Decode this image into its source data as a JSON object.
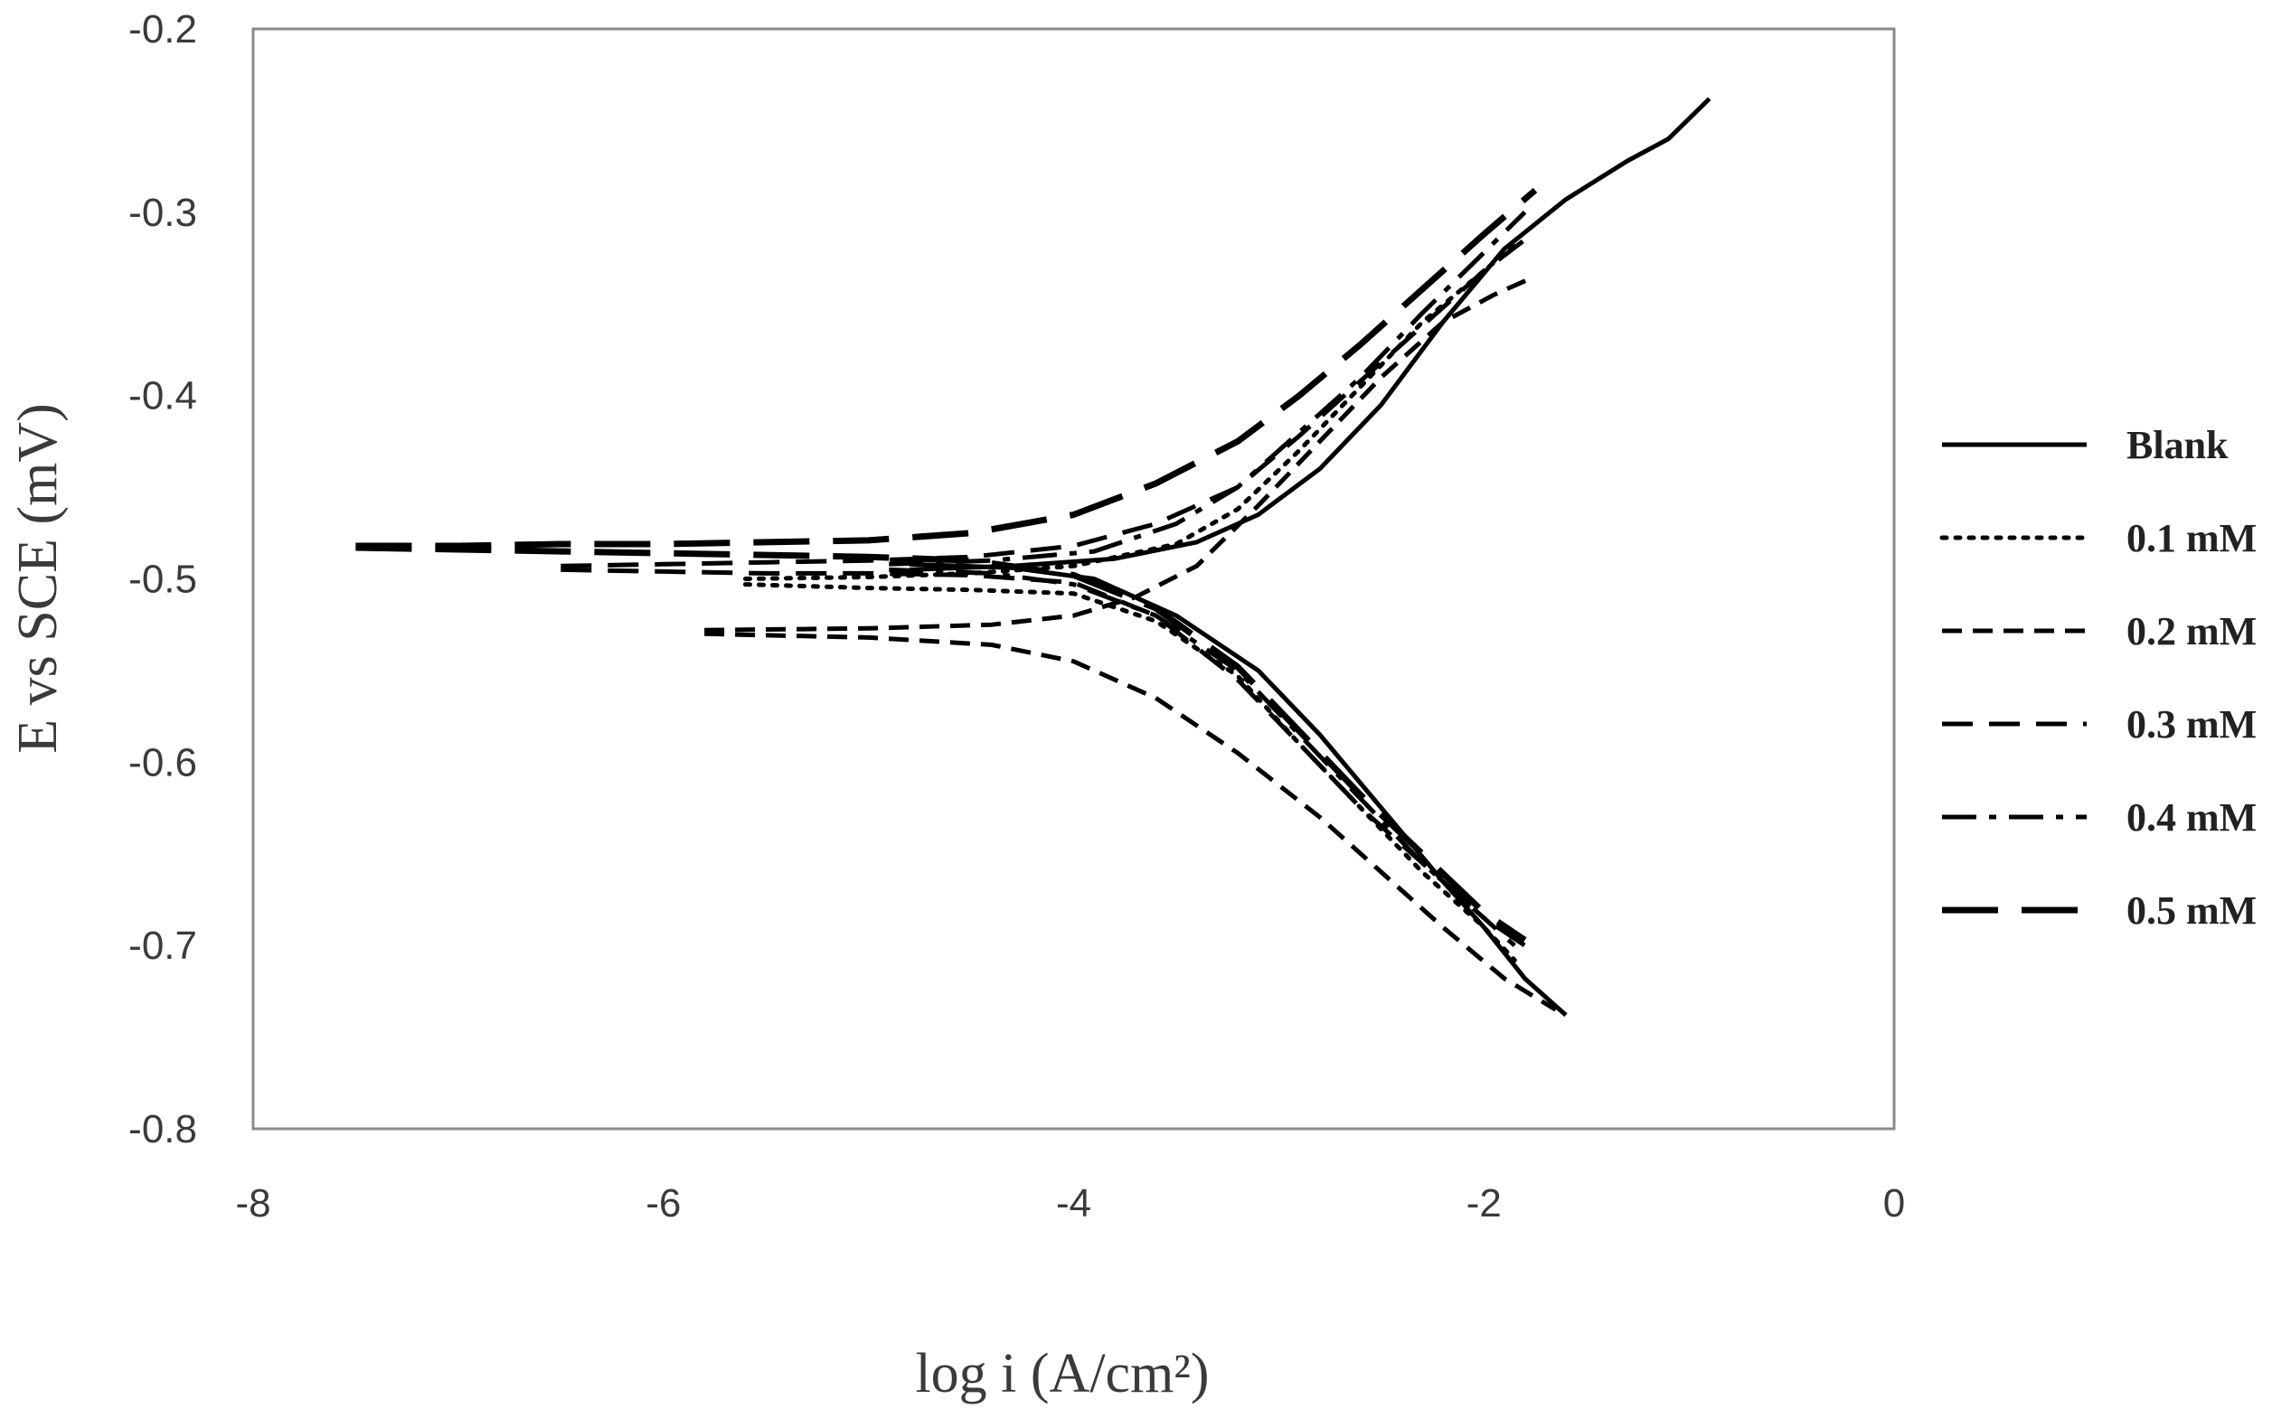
{
  "chart_data": {
    "type": "line",
    "title": "",
    "xlabel": "log i (A/cm²)",
    "ylabel": "E vs SCE (mV)",
    "xlim": [
      -8,
      0
    ],
    "ylim": [
      -0.8,
      -0.2
    ],
    "xticks": [
      -8,
      -6,
      -4,
      -2,
      0
    ],
    "yticks": [
      -0.2,
      -0.3,
      -0.4,
      -0.5,
      -0.6,
      -0.7,
      -0.8
    ],
    "xtick_labels": [
      "-8",
      "-6",
      "-4",
      "-2",
      "0"
    ],
    "ytick_labels": [
      "-0.2",
      "-0.3",
      "-0.4",
      "-0.5",
      "-0.6",
      "-0.7",
      "-0.8"
    ],
    "grid": false,
    "legend_position": "right",
    "series": [
      {
        "name": "Blank",
        "dash": "solid",
        "color": "#000000",
        "anodic": [
          [
            -4.8,
            -0.495
          ],
          [
            -4.3,
            -0.493
          ],
          [
            -3.8,
            -0.489
          ],
          [
            -3.4,
            -0.48
          ],
          [
            -3.1,
            -0.465
          ],
          [
            -2.8,
            -0.44
          ],
          [
            -2.5,
            -0.405
          ],
          [
            -2.2,
            -0.36
          ],
          [
            -1.9,
            -0.32
          ],
          [
            -1.6,
            -0.293
          ],
          [
            -1.3,
            -0.272
          ],
          [
            -1.1,
            -0.26
          ],
          [
            -0.9,
            -0.238
          ]
        ],
        "cathodic": [
          [
            -4.8,
            -0.492
          ],
          [
            -4.3,
            -0.494
          ],
          [
            -3.9,
            -0.5
          ],
          [
            -3.5,
            -0.52
          ],
          [
            -3.1,
            -0.55
          ],
          [
            -2.8,
            -0.585
          ],
          [
            -2.5,
            -0.625
          ],
          [
            -2.2,
            -0.665
          ],
          [
            -2.0,
            -0.69
          ],
          [
            -1.8,
            -0.718
          ],
          [
            -1.6,
            -0.738
          ]
        ]
      },
      {
        "name": "0.1 mM",
        "dash": "dotted",
        "color": "#000000",
        "anodic": [
          [
            -5.6,
            -0.5
          ],
          [
            -5.0,
            -0.499
          ],
          [
            -4.5,
            -0.497
          ],
          [
            -4.0,
            -0.493
          ],
          [
            -3.5,
            -0.481
          ],
          [
            -3.2,
            -0.462
          ],
          [
            -2.9,
            -0.43
          ],
          [
            -2.6,
            -0.395
          ],
          [
            -2.3,
            -0.36
          ],
          [
            -2.0,
            -0.332
          ],
          [
            -1.85,
            -0.318
          ]
        ],
        "cathodic": [
          [
            -5.6,
            -0.503
          ],
          [
            -5.0,
            -0.505
          ],
          [
            -4.5,
            -0.506
          ],
          [
            -4.0,
            -0.508
          ],
          [
            -3.6,
            -0.523
          ],
          [
            -3.2,
            -0.553
          ],
          [
            -2.9,
            -0.59
          ],
          [
            -2.6,
            -0.625
          ],
          [
            -2.3,
            -0.66
          ],
          [
            -2.0,
            -0.69
          ],
          [
            -1.85,
            -0.708
          ]
        ]
      },
      {
        "name": "0.2 mM",
        "dash": "dashed-short",
        "color": "#000000",
        "anodic": [
          [
            -5.8,
            -0.528
          ],
          [
            -5.0,
            -0.527
          ],
          [
            -4.4,
            -0.525
          ],
          [
            -4.0,
            -0.52
          ],
          [
            -3.7,
            -0.51
          ],
          [
            -3.4,
            -0.493
          ],
          [
            -3.1,
            -0.46
          ],
          [
            -2.8,
            -0.425
          ],
          [
            -2.5,
            -0.39
          ],
          [
            -2.2,
            -0.36
          ],
          [
            -1.95,
            -0.345
          ],
          [
            -1.75,
            -0.335
          ]
        ],
        "cathodic": [
          [
            -5.8,
            -0.53
          ],
          [
            -5.0,
            -0.532
          ],
          [
            -4.4,
            -0.536
          ],
          [
            -4.0,
            -0.545
          ],
          [
            -3.6,
            -0.565
          ],
          [
            -3.2,
            -0.595
          ],
          [
            -2.8,
            -0.63
          ],
          [
            -2.5,
            -0.66
          ],
          [
            -2.2,
            -0.69
          ],
          [
            -1.9,
            -0.718
          ],
          [
            -1.65,
            -0.735
          ]
        ]
      },
      {
        "name": "0.3 mM",
        "dash": "dashed-medium",
        "color": "#000000",
        "anodic": [
          [
            -6.5,
            -0.493
          ],
          [
            -6.0,
            -0.492
          ],
          [
            -5.5,
            -0.491
          ],
          [
            -5.0,
            -0.49
          ],
          [
            -4.5,
            -0.488
          ],
          [
            -4.0,
            -0.482
          ],
          [
            -3.6,
            -0.47
          ],
          [
            -3.2,
            -0.45
          ],
          [
            -2.9,
            -0.422
          ],
          [
            -2.6,
            -0.392
          ],
          [
            -2.3,
            -0.362
          ],
          [
            -2.0,
            -0.332
          ],
          [
            -1.8,
            -0.315
          ]
        ],
        "cathodic": [
          [
            -6.5,
            -0.495
          ],
          [
            -6.0,
            -0.496
          ],
          [
            -5.5,
            -0.497
          ],
          [
            -5.0,
            -0.497
          ],
          [
            -4.5,
            -0.498
          ],
          [
            -4.0,
            -0.502
          ],
          [
            -3.6,
            -0.52
          ],
          [
            -3.2,
            -0.555
          ],
          [
            -2.9,
            -0.59
          ],
          [
            -2.6,
            -0.625
          ],
          [
            -2.3,
            -0.655
          ],
          [
            -2.0,
            -0.685
          ],
          [
            -1.85,
            -0.7
          ]
        ]
      },
      {
        "name": "0.4 mM",
        "dash": "dash-dot",
        "color": "#000000",
        "anodic": [
          [
            -4.9,
            -0.492
          ],
          [
            -4.4,
            -0.49
          ],
          [
            -3.9,
            -0.485
          ],
          [
            -3.5,
            -0.47
          ],
          [
            -3.2,
            -0.45
          ],
          [
            -2.9,
            -0.42
          ],
          [
            -2.6,
            -0.39
          ],
          [
            -2.3,
            -0.355
          ],
          [
            -2.0,
            -0.322
          ],
          [
            -1.8,
            -0.3
          ]
        ],
        "cathodic": [
          [
            -4.9,
            -0.495
          ],
          [
            -4.4,
            -0.497
          ],
          [
            -4.0,
            -0.503
          ],
          [
            -3.6,
            -0.52
          ],
          [
            -3.2,
            -0.55
          ],
          [
            -2.9,
            -0.585
          ],
          [
            -2.6,
            -0.62
          ],
          [
            -2.3,
            -0.655
          ],
          [
            -2.0,
            -0.685
          ],
          [
            -1.8,
            -0.7
          ]
        ]
      },
      {
        "name": "0.5 mM",
        "dash": "dashed-long",
        "color": "#000000",
        "anodic": [
          [
            -7.5,
            -0.482
          ],
          [
            -7.0,
            -0.482
          ],
          [
            -6.5,
            -0.481
          ],
          [
            -6.0,
            -0.481
          ],
          [
            -5.5,
            -0.48
          ],
          [
            -5.0,
            -0.479
          ],
          [
            -4.5,
            -0.475
          ],
          [
            -4.0,
            -0.465
          ],
          [
            -3.6,
            -0.448
          ],
          [
            -3.2,
            -0.425
          ],
          [
            -2.9,
            -0.4
          ],
          [
            -2.6,
            -0.372
          ],
          [
            -2.3,
            -0.342
          ],
          [
            -2.0,
            -0.312
          ],
          [
            -1.75,
            -0.288
          ]
        ],
        "cathodic": [
          [
            -7.5,
            -0.483
          ],
          [
            -7.0,
            -0.484
          ],
          [
            -6.5,
            -0.485
          ],
          [
            -6.0,
            -0.486
          ],
          [
            -5.5,
            -0.487
          ],
          [
            -5.0,
            -0.488
          ],
          [
            -4.5,
            -0.49
          ],
          [
            -4.0,
            -0.498
          ],
          [
            -3.6,
            -0.516
          ],
          [
            -3.2,
            -0.548
          ],
          [
            -2.9,
            -0.583
          ],
          [
            -2.6,
            -0.618
          ],
          [
            -2.3,
            -0.65
          ],
          [
            -2.0,
            -0.682
          ],
          [
            -1.8,
            -0.697
          ]
        ]
      }
    ]
  }
}
